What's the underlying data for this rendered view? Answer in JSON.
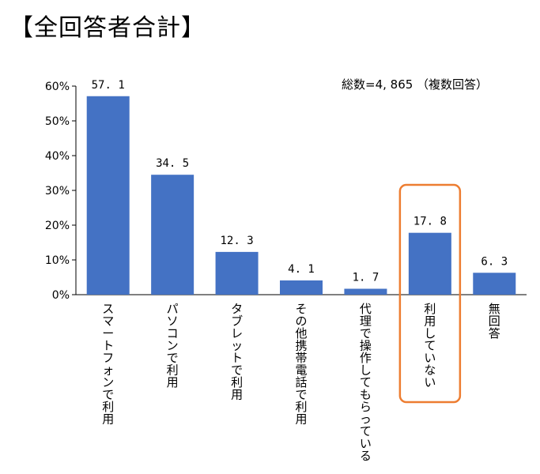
{
  "page": {
    "title": "【全回答者合計】",
    "note": "総数=4, 865  （複数回答）"
  },
  "chart_data": {
    "type": "bar",
    "categories": [
      "スマートフォンで利用",
      "パソコンで利用",
      "タブレットで利用",
      "その他携帯電話で利用",
      "代理で操作してもらっている",
      "利用していない",
      "無回答"
    ],
    "values": [
      57.1,
      34.5,
      12.3,
      4.1,
      1.7,
      17.8,
      6.3
    ],
    "data_labels": [
      "57. 1",
      "34. 5",
      "12. 3",
      "4. 1",
      "1. 7",
      "17. 8",
      "6. 3"
    ],
    "y_ticks": [
      0,
      10,
      20,
      30,
      40,
      50,
      60
    ],
    "y_tick_labels": [
      "0%",
      "10%",
      "20%",
      "30%",
      "40%",
      "50%",
      "60%"
    ],
    "ylim": [
      0,
      60
    ],
    "grid": false,
    "highlighted_category": "利用していない",
    "colors": {
      "bar": "#4472C4",
      "highlight": "#ED7D31",
      "axis": "#000000"
    }
  }
}
